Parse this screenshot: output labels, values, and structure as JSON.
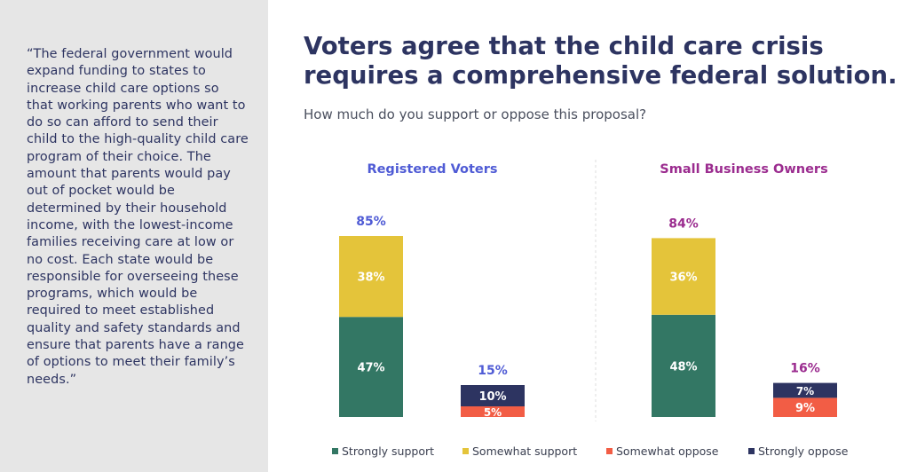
{
  "sidebar": {
    "quote": "“The federal government would expand funding to states to increase child care options so that working parents who want to do so can afford to send their child to the high-quality child care program of their choice. The amount that parents would pay out of pocket would be determined by their household income, with the lowest-income families receiving care at low or no cost. Each state would be responsible for overseeing these programs, which would be required to meet established quality and safety standards and ensure that parents have a range of options to meet their family’s needs.”"
  },
  "header": {
    "title": "Voters agree that the child care crisis requires a comprehensive federal solution.",
    "subtitle": "How much do you support or oppose this proposal?"
  },
  "chart_data": {
    "type": "bar",
    "stacked": true,
    "ylim": [
      0,
      100
    ],
    "grid": false,
    "legend_position": "bottom",
    "groups": [
      {
        "name": "Registered Voters",
        "color": "#4f5bd5",
        "bars": [
          {
            "total_label": "85%",
            "segments": [
              {
                "series": "Strongly support",
                "value": 47,
                "label": "47%"
              },
              {
                "series": "Somewhat support",
                "value": 38,
                "label": "38%"
              }
            ]
          },
          {
            "total_label": "15%",
            "segments": [
              {
                "series": "Somewhat oppose",
                "value": 5,
                "label": "5%"
              },
              {
                "series": "Strongly oppose",
                "value": 10,
                "label": "10%"
              }
            ]
          }
        ]
      },
      {
        "name": "Small Business Owners",
        "color": "#9b2c8f",
        "bars": [
          {
            "total_label": "84%",
            "segments": [
              {
                "series": "Strongly support",
                "value": 48,
                "label": "48%"
              },
              {
                "series": "Somewhat support",
                "value": 36,
                "label": "36%"
              }
            ]
          },
          {
            "total_label": "16%",
            "segments": [
              {
                "series": "Somewhat oppose",
                "value": 9,
                "label": "9%"
              },
              {
                "series": "Strongly oppose",
                "value": 7,
                "label": "7%"
              }
            ]
          }
        ]
      }
    ],
    "series": [
      {
        "name": "Strongly support",
        "color": "#337764"
      },
      {
        "name": "Somewhat support",
        "color": "#e4c43a"
      },
      {
        "name": "Somewhat oppose",
        "color": "#f25d45"
      },
      {
        "name": "Strongly oppose",
        "color": "#2d3461"
      }
    ]
  }
}
